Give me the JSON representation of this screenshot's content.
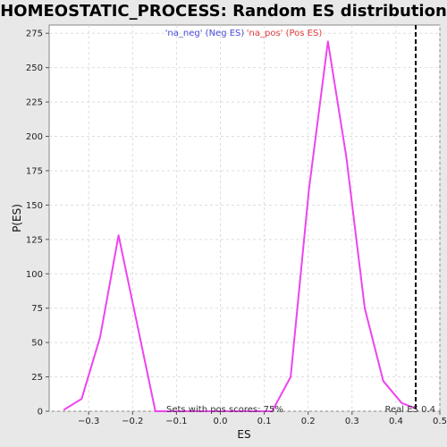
{
  "chart_data": {
    "type": "line",
    "title": "HOMEOSTATIC_PROCESS: Random ES distribution",
    "xlabel": "ES",
    "ylabel": "P(ES)",
    "xlim": [
      -0.39,
      0.5
    ],
    "ylim": [
      0,
      281
    ],
    "x_ticks": [
      -0.3,
      -0.2,
      -0.1,
      0,
      0.1,
      0.2,
      0.3,
      0.4,
      0.5
    ],
    "x_tick_labels": [
      "−0.3",
      "−0.2",
      "−0.1",
      "0.0",
      "0.1",
      "0.2",
      "0.3",
      "0.4",
      "0.5"
    ],
    "y_ticks": [
      0,
      25,
      50,
      75,
      100,
      125,
      150,
      175,
      200,
      225,
      250,
      275
    ],
    "grid": true,
    "legend": {
      "placement": "top-center",
      "entries": [
        {
          "label": "'na_neg' (Neg ES)",
          "color": "#4b4bdb"
        },
        {
          "label": "'na_pos' (Pos ES)",
          "color": "#e03c3c"
        }
      ]
    },
    "series": [
      {
        "color": "#ee44ee",
        "x": [
          -0.357,
          -0.316,
          -0.274,
          -0.232,
          -0.19,
          -0.148,
          -0.106,
          -0.064,
          -0.022,
          0.02,
          0.062,
          0.104,
          0.118,
          0.16,
          0.202,
          0.245,
          0.287,
          0.329,
          0.371,
          0.413,
          0.445
        ],
        "y": [
          1,
          9,
          54,
          128,
          64,
          0,
          0,
          0,
          0,
          0,
          0,
          0,
          0,
          25,
          162,
          269,
          185,
          75,
          22,
          6,
          2
        ]
      }
    ],
    "vline": {
      "x": 0.445,
      "style": "dashed",
      "color": "#000000"
    },
    "annotations": {
      "pos_scores": "Sets with pos scores: 75%",
      "real_es": "Real ES 0.4"
    }
  }
}
